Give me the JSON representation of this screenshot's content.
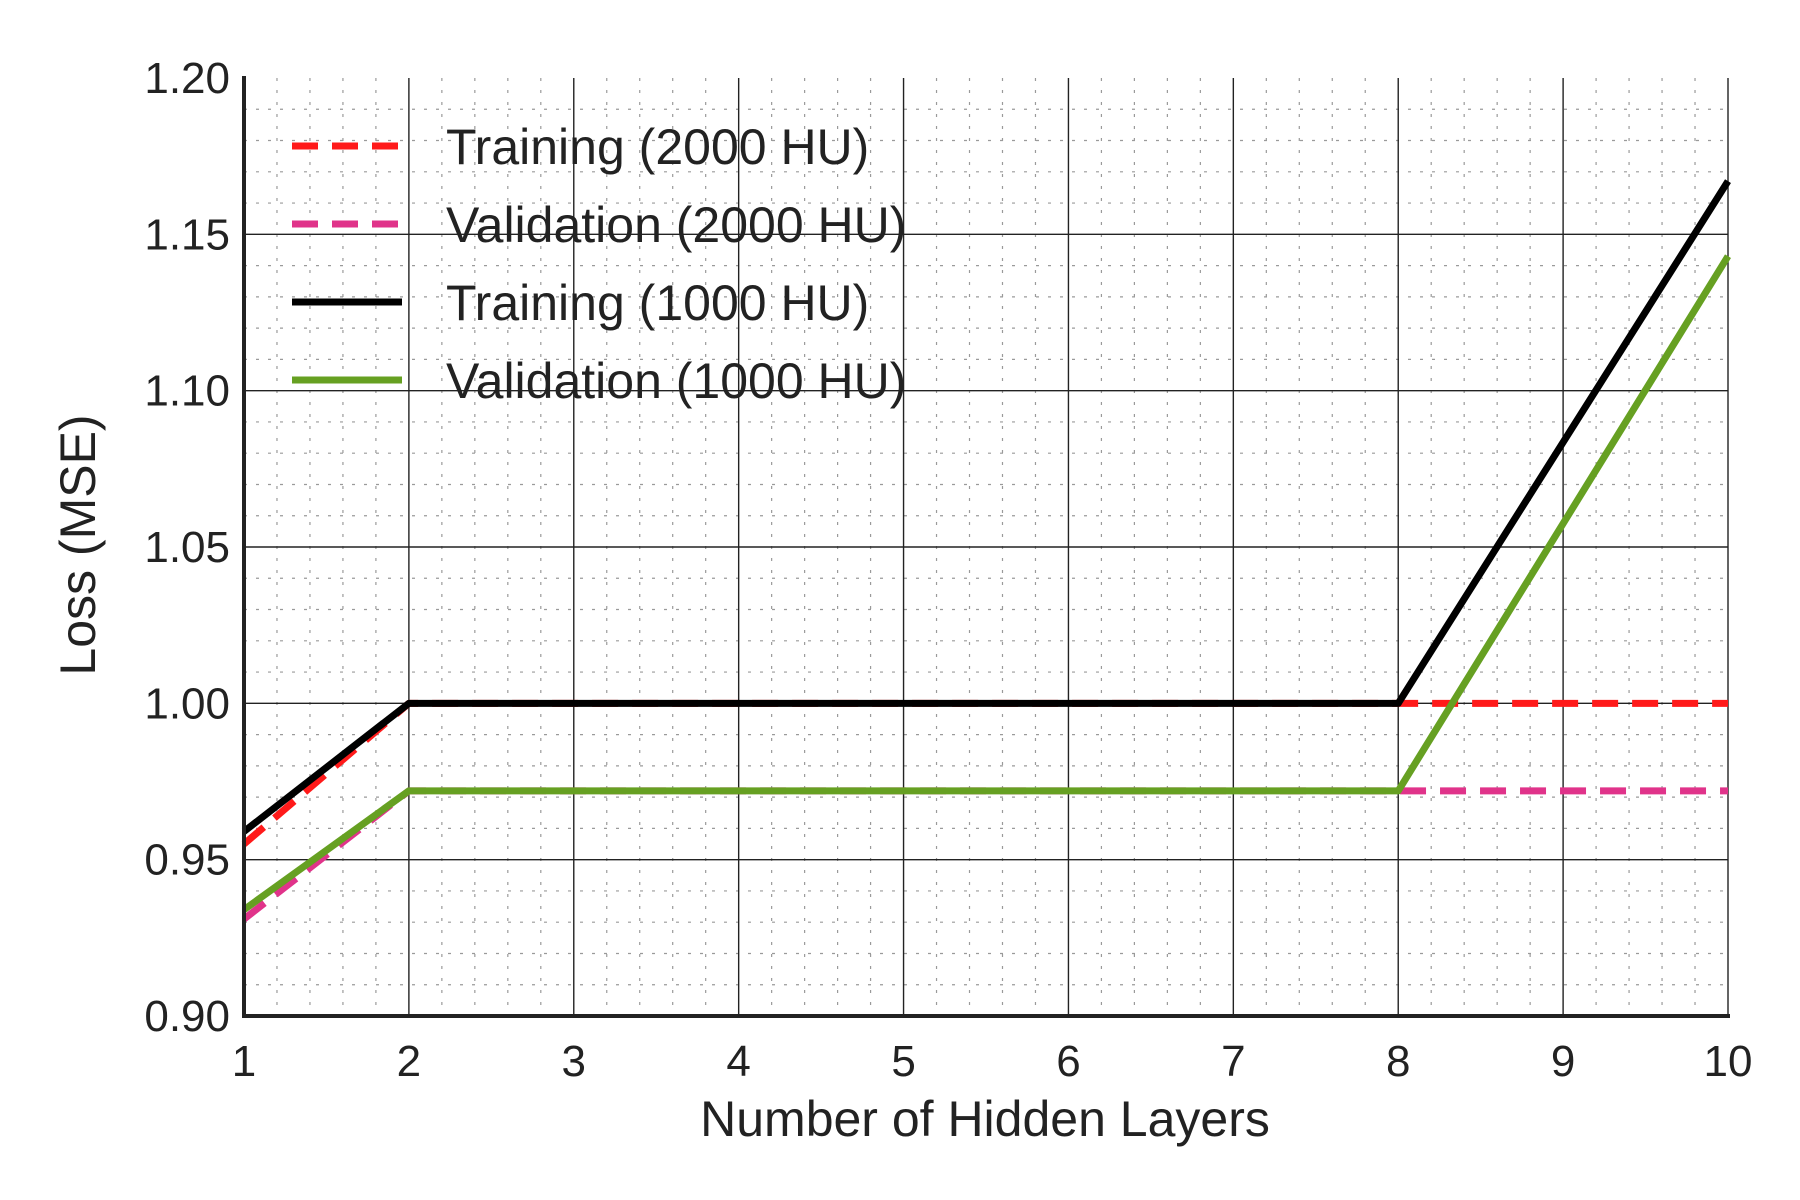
{
  "chart_data": {
    "type": "line",
    "title": "",
    "xlabel": "Number of Hidden Layers",
    "ylabel": "Loss (MSE)",
    "xlim": [
      1,
      10
    ],
    "ylim": [
      0.9,
      1.2
    ],
    "x_ticks": [
      "1",
      "2",
      "3",
      "4",
      "5",
      "6",
      "7",
      "8",
      "9",
      "10"
    ],
    "y_ticks": [
      "0.90",
      "0.95",
      "1.00",
      "1.05",
      "1.10",
      "1.15",
      "1.20"
    ],
    "grid": true,
    "legend_position": "top-left",
    "series": [
      {
        "name": "Training (2000 HU)",
        "color": "#ff1a1a",
        "style": "dashed",
        "x": [
          1,
          2,
          8,
          10
        ],
        "y": [
          0.955,
          1.0,
          1.0,
          1.0
        ]
      },
      {
        "name": "Validation (2000 HU)",
        "color": "#e0338a",
        "style": "dashed",
        "x": [
          1,
          2,
          8,
          10
        ],
        "y": [
          0.931,
          0.972,
          0.972,
          0.972
        ]
      },
      {
        "name": "Training (1000 HU)",
        "color": "#000000",
        "style": "solid",
        "x": [
          1,
          2,
          8,
          10
        ],
        "y": [
          0.959,
          1.0,
          1.0,
          1.167
        ]
      },
      {
        "name": "Validation (1000 HU)",
        "color": "#66a022",
        "style": "solid",
        "x": [
          1,
          2,
          8,
          10
        ],
        "y": [
          0.934,
          0.972,
          0.972,
          1.143
        ]
      }
    ]
  }
}
